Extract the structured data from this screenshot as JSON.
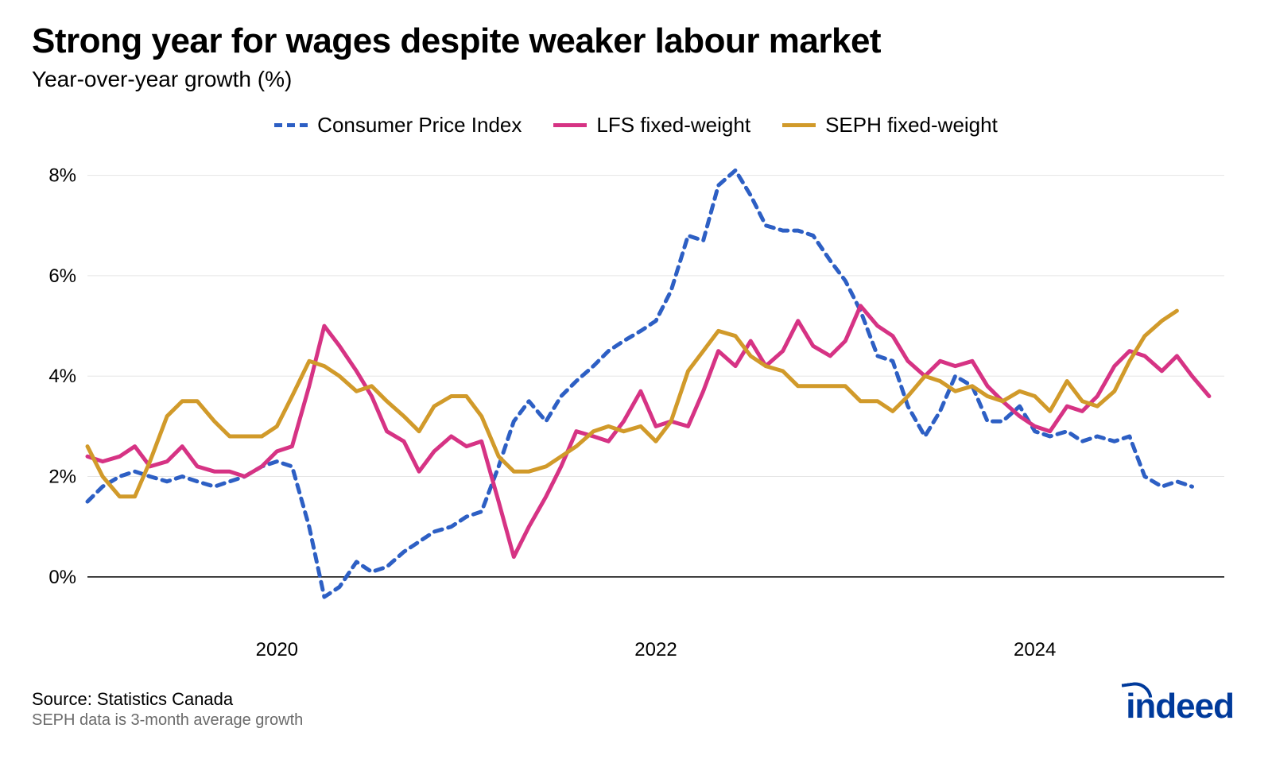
{
  "title": "Strong year for wages despite weaker labour market",
  "subtitle": "Year-over-year growth (%)",
  "source_line": "Source: Statistics Canada",
  "note_line": "SEPH data is 3-month average growth",
  "logo_text": "indeed",
  "logo_color": "#003a9b",
  "chart": {
    "type": "line",
    "background_color": "#ffffff",
    "grid_color": "#e5e5e5",
    "baseline_color": "#000000",
    "axis_text_color": "#000000",
    "x": {
      "start": 2019.0,
      "end": 2025.0,
      "ticks": [
        2020,
        2022,
        2024
      ],
      "tick_labels": [
        "2020",
        "2022",
        "2024"
      ]
    },
    "y": {
      "min": -1,
      "max": 8.5,
      "ticks": [
        0,
        2,
        4,
        6,
        8
      ],
      "tick_labels": [
        "0%",
        "2%",
        "4%",
        "6%",
        "8%"
      ]
    },
    "legend": [
      {
        "key": "cpi",
        "label": "Consumer Price Index",
        "color": "#2d5fc4",
        "dash": "10,8",
        "width": 5
      },
      {
        "key": "lfs",
        "label": "LFS fixed-weight",
        "color": "#d63384",
        "dash": "",
        "width": 5
      },
      {
        "key": "seph",
        "label": "SEPH fixed-weight",
        "color": "#d19a2a",
        "dash": "",
        "width": 5
      }
    ],
    "series": {
      "cpi": [
        [
          2019.0,
          1.5
        ],
        [
          2019.08,
          1.8
        ],
        [
          2019.17,
          2.0
        ],
        [
          2019.25,
          2.1
        ],
        [
          2019.33,
          2.0
        ],
        [
          2019.42,
          1.9
        ],
        [
          2019.5,
          2.0
        ],
        [
          2019.58,
          1.9
        ],
        [
          2019.67,
          1.8
        ],
        [
          2019.75,
          1.9
        ],
        [
          2019.83,
          2.0
        ],
        [
          2019.92,
          2.2
        ],
        [
          2020.0,
          2.3
        ],
        [
          2020.08,
          2.2
        ],
        [
          2020.17,
          1.0
        ],
        [
          2020.25,
          -0.4
        ],
        [
          2020.33,
          -0.2
        ],
        [
          2020.42,
          0.3
        ],
        [
          2020.5,
          0.1
        ],
        [
          2020.58,
          0.2
        ],
        [
          2020.67,
          0.5
        ],
        [
          2020.75,
          0.7
        ],
        [
          2020.83,
          0.9
        ],
        [
          2020.92,
          1.0
        ],
        [
          2021.0,
          1.2
        ],
        [
          2021.08,
          1.3
        ],
        [
          2021.17,
          2.2
        ],
        [
          2021.25,
          3.1
        ],
        [
          2021.33,
          3.5
        ],
        [
          2021.42,
          3.1
        ],
        [
          2021.5,
          3.6
        ],
        [
          2021.58,
          3.9
        ],
        [
          2021.67,
          4.2
        ],
        [
          2021.75,
          4.5
        ],
        [
          2021.83,
          4.7
        ],
        [
          2021.92,
          4.9
        ],
        [
          2022.0,
          5.1
        ],
        [
          2022.08,
          5.7
        ],
        [
          2022.17,
          6.8
        ],
        [
          2022.25,
          6.7
        ],
        [
          2022.33,
          7.8
        ],
        [
          2022.42,
          8.1
        ],
        [
          2022.5,
          7.6
        ],
        [
          2022.58,
          7.0
        ],
        [
          2022.67,
          6.9
        ],
        [
          2022.75,
          6.9
        ],
        [
          2022.83,
          6.8
        ],
        [
          2022.92,
          6.3
        ],
        [
          2023.0,
          5.9
        ],
        [
          2023.08,
          5.3
        ],
        [
          2023.17,
          4.4
        ],
        [
          2023.25,
          4.3
        ],
        [
          2023.33,
          3.4
        ],
        [
          2023.42,
          2.8
        ],
        [
          2023.5,
          3.3
        ],
        [
          2023.58,
          4.0
        ],
        [
          2023.67,
          3.8
        ],
        [
          2023.75,
          3.1
        ],
        [
          2023.83,
          3.1
        ],
        [
          2023.92,
          3.4
        ],
        [
          2024.0,
          2.9
        ],
        [
          2024.08,
          2.8
        ],
        [
          2024.17,
          2.9
        ],
        [
          2024.25,
          2.7
        ],
        [
          2024.33,
          2.8
        ],
        [
          2024.42,
          2.7
        ],
        [
          2024.5,
          2.8
        ],
        [
          2024.58,
          2.0
        ],
        [
          2024.67,
          1.8
        ],
        [
          2024.75,
          1.9
        ],
        [
          2024.83,
          1.8
        ]
      ],
      "lfs": [
        [
          2019.0,
          2.4
        ],
        [
          2019.08,
          2.3
        ],
        [
          2019.17,
          2.4
        ],
        [
          2019.25,
          2.6
        ],
        [
          2019.33,
          2.2
        ],
        [
          2019.42,
          2.3
        ],
        [
          2019.5,
          2.6
        ],
        [
          2019.58,
          2.2
        ],
        [
          2019.67,
          2.1
        ],
        [
          2019.75,
          2.1
        ],
        [
          2019.83,
          2.0
        ],
        [
          2019.92,
          2.2
        ],
        [
          2020.0,
          2.5
        ],
        [
          2020.08,
          2.6
        ],
        [
          2020.17,
          3.8
        ],
        [
          2020.25,
          5.0
        ],
        [
          2020.33,
          4.6
        ],
        [
          2020.42,
          4.1
        ],
        [
          2020.5,
          3.6
        ],
        [
          2020.58,
          2.9
        ],
        [
          2020.67,
          2.7
        ],
        [
          2020.75,
          2.1
        ],
        [
          2020.83,
          2.5
        ],
        [
          2020.92,
          2.8
        ],
        [
          2021.0,
          2.6
        ],
        [
          2021.08,
          2.7
        ],
        [
          2021.17,
          1.5
        ],
        [
          2021.25,
          0.4
        ],
        [
          2021.33,
          1.0
        ],
        [
          2021.42,
          1.6
        ],
        [
          2021.5,
          2.2
        ],
        [
          2021.58,
          2.9
        ],
        [
          2021.67,
          2.8
        ],
        [
          2021.75,
          2.7
        ],
        [
          2021.83,
          3.1
        ],
        [
          2021.92,
          3.7
        ],
        [
          2022.0,
          3.0
        ],
        [
          2022.08,
          3.1
        ],
        [
          2022.17,
          3.0
        ],
        [
          2022.25,
          3.7
        ],
        [
          2022.33,
          4.5
        ],
        [
          2022.42,
          4.2
        ],
        [
          2022.5,
          4.7
        ],
        [
          2022.58,
          4.2
        ],
        [
          2022.67,
          4.5
        ],
        [
          2022.75,
          5.1
        ],
        [
          2022.83,
          4.6
        ],
        [
          2022.92,
          4.4
        ],
        [
          2023.0,
          4.7
        ],
        [
          2023.08,
          5.4
        ],
        [
          2023.17,
          5.0
        ],
        [
          2023.25,
          4.8
        ],
        [
          2023.33,
          4.3
        ],
        [
          2023.42,
          4.0
        ],
        [
          2023.5,
          4.3
        ],
        [
          2023.58,
          4.2
        ],
        [
          2023.67,
          4.3
        ],
        [
          2023.75,
          3.8
        ],
        [
          2023.83,
          3.5
        ],
        [
          2023.92,
          3.2
        ],
        [
          2024.0,
          3.0
        ],
        [
          2024.08,
          2.9
        ],
        [
          2024.17,
          3.4
        ],
        [
          2024.25,
          3.3
        ],
        [
          2024.33,
          3.6
        ],
        [
          2024.42,
          4.2
        ],
        [
          2024.5,
          4.5
        ],
        [
          2024.58,
          4.4
        ],
        [
          2024.67,
          4.1
        ],
        [
          2024.75,
          4.4
        ],
        [
          2024.83,
          4.0
        ],
        [
          2024.92,
          3.6
        ]
      ],
      "seph": [
        [
          2019.0,
          2.6
        ],
        [
          2019.08,
          2.0
        ],
        [
          2019.17,
          1.6
        ],
        [
          2019.25,
          1.6
        ],
        [
          2019.33,
          2.3
        ],
        [
          2019.42,
          3.2
        ],
        [
          2019.5,
          3.5
        ],
        [
          2019.58,
          3.5
        ],
        [
          2019.67,
          3.1
        ],
        [
          2019.75,
          2.8
        ],
        [
          2019.83,
          2.8
        ],
        [
          2019.92,
          2.8
        ],
        [
          2020.0,
          3.0
        ],
        [
          2020.08,
          3.6
        ],
        [
          2020.17,
          4.3
        ],
        [
          2020.25,
          4.2
        ],
        [
          2020.33,
          4.0
        ],
        [
          2020.42,
          3.7
        ],
        [
          2020.5,
          3.8
        ],
        [
          2020.58,
          3.5
        ],
        [
          2020.67,
          3.2
        ],
        [
          2020.75,
          2.9
        ],
        [
          2020.83,
          3.4
        ],
        [
          2020.92,
          3.6
        ],
        [
          2021.0,
          3.6
        ],
        [
          2021.08,
          3.2
        ],
        [
          2021.17,
          2.4
        ],
        [
          2021.25,
          2.1
        ],
        [
          2021.33,
          2.1
        ],
        [
          2021.42,
          2.2
        ],
        [
          2021.5,
          2.4
        ],
        [
          2021.58,
          2.6
        ],
        [
          2021.67,
          2.9
        ],
        [
          2021.75,
          3.0
        ],
        [
          2021.83,
          2.9
        ],
        [
          2021.92,
          3.0
        ],
        [
          2022.0,
          2.7
        ],
        [
          2022.08,
          3.1
        ],
        [
          2022.17,
          4.1
        ],
        [
          2022.25,
          4.5
        ],
        [
          2022.33,
          4.9
        ],
        [
          2022.42,
          4.8
        ],
        [
          2022.5,
          4.4
        ],
        [
          2022.58,
          4.2
        ],
        [
          2022.67,
          4.1
        ],
        [
          2022.75,
          3.8
        ],
        [
          2022.83,
          3.8
        ],
        [
          2022.92,
          3.8
        ],
        [
          2023.0,
          3.8
        ],
        [
          2023.08,
          3.5
        ],
        [
          2023.17,
          3.5
        ],
        [
          2023.25,
          3.3
        ],
        [
          2023.33,
          3.6
        ],
        [
          2023.42,
          4.0
        ],
        [
          2023.5,
          3.9
        ],
        [
          2023.58,
          3.7
        ],
        [
          2023.67,
          3.8
        ],
        [
          2023.75,
          3.6
        ],
        [
          2023.83,
          3.5
        ],
        [
          2023.92,
          3.7
        ],
        [
          2024.0,
          3.6
        ],
        [
          2024.08,
          3.3
        ],
        [
          2024.17,
          3.9
        ],
        [
          2024.25,
          3.5
        ],
        [
          2024.33,
          3.4
        ],
        [
          2024.42,
          3.7
        ],
        [
          2024.5,
          4.3
        ],
        [
          2024.58,
          4.8
        ],
        [
          2024.67,
          5.1
        ],
        [
          2024.75,
          5.3
        ]
      ]
    }
  }
}
